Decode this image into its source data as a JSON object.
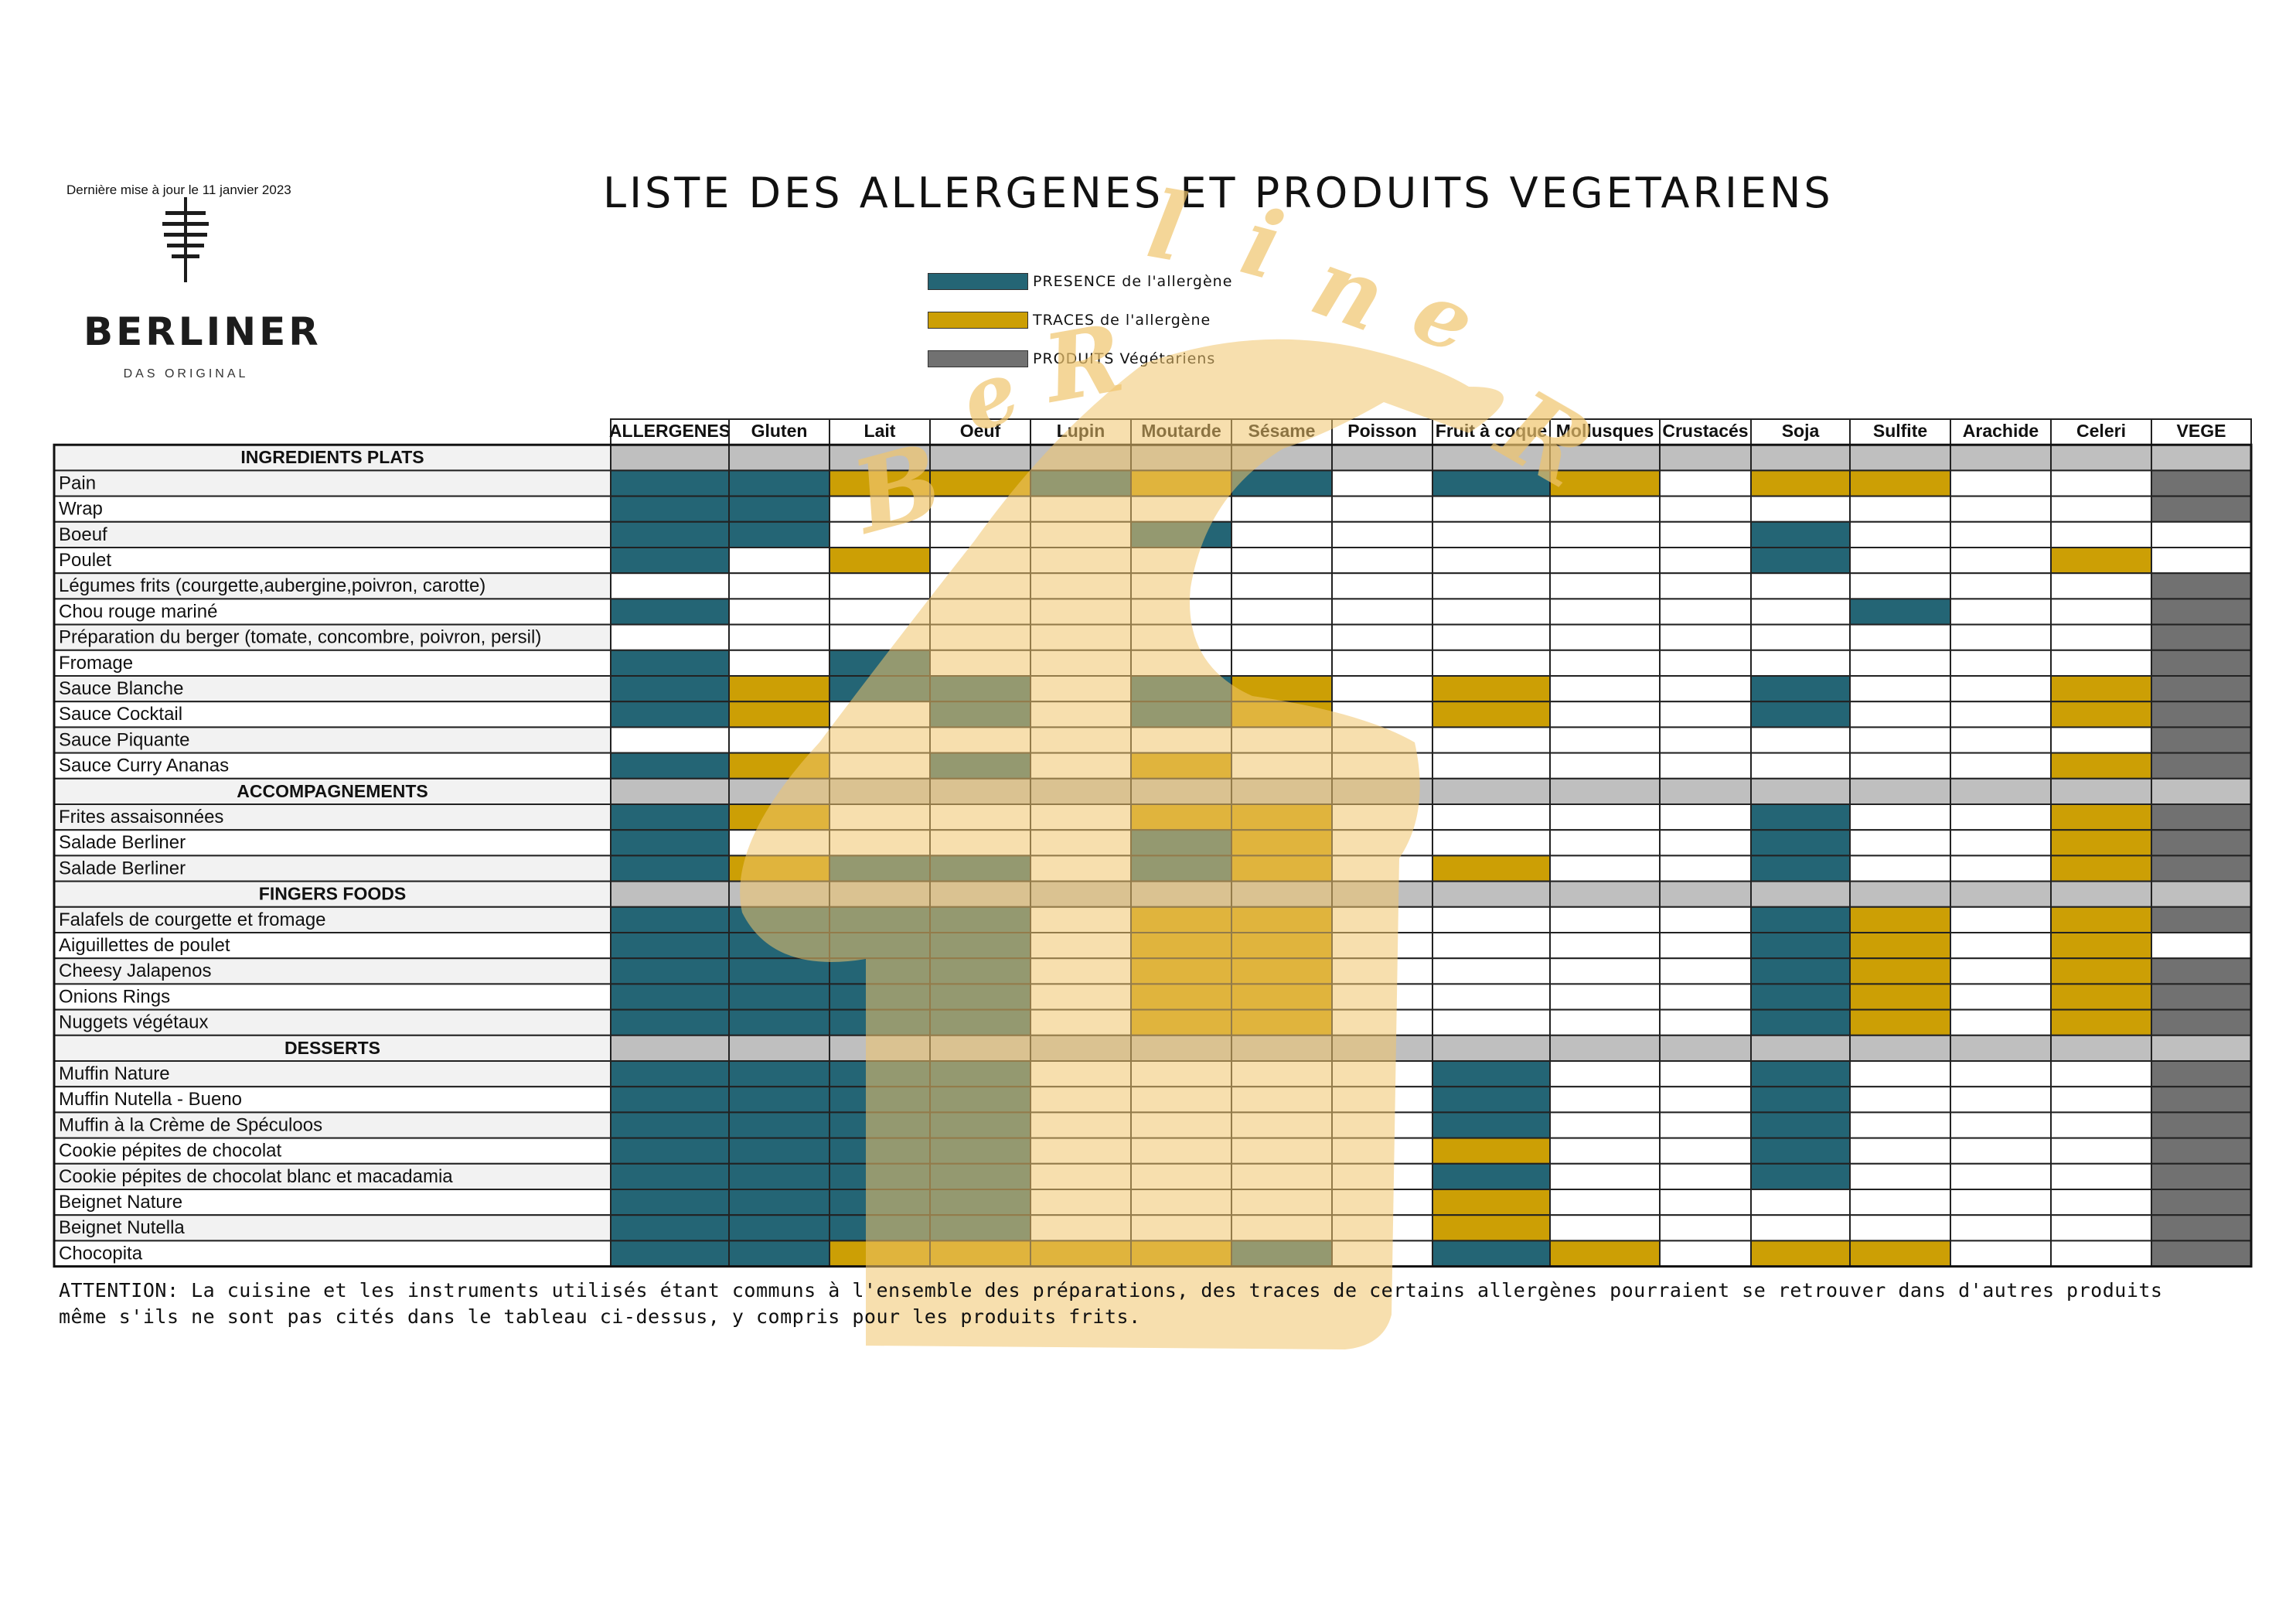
{
  "header": {
    "last_update": "Dernière mise à jour le 11 janvier 2023",
    "brand": "BERLINER",
    "tagline": "DAS ORIGINAL",
    "title": "LISTE DES ALLERGENES ET PRODUITS VEGETARIENS",
    "logo_icon": "kebab-spit-icon"
  },
  "legend": [
    {
      "label": "PRESENCE de l'allergène",
      "color": "#246575"
    },
    {
      "label": "TRACES de l'allergène",
      "color": "#cc9f05"
    },
    {
      "label": "PRODUITS Végétariens",
      "color": "#717171"
    }
  ],
  "colors": {
    "presence": "#246575",
    "traces": "#cc9f05",
    "vege": "#717171",
    "section": "#bfbfbf",
    "row_alt": "#f2f2f2",
    "watermark": "#f0c46c"
  },
  "table": {
    "columns": [
      "ALLERGENES",
      "Gluten",
      "Lait",
      "Oeuf",
      "Lupin",
      "Moutarde",
      "Sésame",
      "Poisson",
      "Fruit à coque",
      "Mollusques",
      "Crustacés",
      "Soja",
      "Sulfite",
      "Arachide",
      "Celeri",
      "VEGE"
    ],
    "sections": [
      {
        "name": "INGREDIENTS PLATS",
        "rows": [
          {
            "label": "Pain",
            "cells": [
              "P",
              "P",
              "T",
              "T",
              "P",
              "T",
              "P",
              "",
              "P",
              "T",
              "",
              "T",
              "T",
              "",
              "",
              "V"
            ]
          },
          {
            "label": "Wrap",
            "cells": [
              "P",
              "P",
              "",
              "",
              "",
              "",
              "",
              "",
              "",
              "",
              "",
              "",
              "",
              "",
              "",
              "V"
            ]
          },
          {
            "label": "Boeuf",
            "cells": [
              "P",
              "P",
              "",
              "",
              "",
              "P",
              "",
              "",
              "",
              "",
              "",
              "P",
              "",
              "",
              "",
              ""
            ]
          },
          {
            "label": "Poulet",
            "cells": [
              "P",
              "",
              "T",
              "",
              "",
              "",
              "",
              "",
              "",
              "",
              "",
              "P",
              "",
              "",
              "T",
              ""
            ]
          },
          {
            "label": "Légumes frits (courgette,aubergine,poivron, carotte)",
            "cells": [
              "",
              "",
              "",
              "",
              "",
              "",
              "",
              "",
              "",
              "",
              "",
              "",
              "",
              "",
              "",
              "V"
            ]
          },
          {
            "label": "Chou rouge mariné",
            "cells": [
              "P",
              "",
              "",
              "",
              "",
              "",
              "",
              "",
              "",
              "",
              "",
              "",
              "P",
              "",
              "",
              "V"
            ]
          },
          {
            "label": "Préparation du berger (tomate, concombre, poivron, persil)",
            "cells": [
              "",
              "",
              "",
              "",
              "",
              "",
              "",
              "",
              "",
              "",
              "",
              "",
              "",
              "",
              "",
              "V"
            ]
          },
          {
            "label": "Fromage",
            "cells": [
              "P",
              "",
              "P",
              "",
              "",
              "",
              "",
              "",
              "",
              "",
              "",
              "",
              "",
              "",
              "",
              "V"
            ]
          },
          {
            "label": "Sauce Blanche",
            "cells": [
              "P",
              "T",
              "P",
              "P",
              "",
              "P",
              "T",
              "",
              "T",
              "",
              "",
              "P",
              "",
              "",
              "T",
              "V"
            ]
          },
          {
            "label": "Sauce Cocktail",
            "cells": [
              "P",
              "T",
              "",
              "P",
              "",
              "P",
              "T",
              "",
              "T",
              "",
              "",
              "P",
              "",
              "",
              "T",
              "V"
            ]
          },
          {
            "label": "Sauce Piquante",
            "cells": [
              "",
              "",
              "",
              "",
              "",
              "",
              "",
              "",
              "",
              "",
              "",
              "",
              "",
              "",
              "",
              "V"
            ]
          },
          {
            "label": "Sauce Curry Ananas",
            "cells": [
              "P",
              "T",
              "",
              "P",
              "",
              "T",
              "",
              "",
              "",
              "",
              "",
              "",
              "",
              "",
              "T",
              "V"
            ]
          }
        ]
      },
      {
        "name": "ACCOMPAGNEMENTS",
        "rows": [
          {
            "label": "Frites assaisonnées",
            "cells": [
              "P",
              "T",
              "",
              "",
              "",
              "T",
              "T",
              "",
              "",
              "",
              "",
              "P",
              "",
              "",
              "T",
              "V"
            ]
          },
          {
            "label": "Salade Berliner",
            "cells": [
              "P",
              "",
              "",
              "",
              "",
              "P",
              "T",
              "",
              "",
              "",
              "",
              "P",
              "",
              "",
              "T",
              "V"
            ]
          },
          {
            "label": "Salade Berliner",
            "cells": [
              "P",
              "T",
              "P",
              "P",
              "",
              "P",
              "T",
              "",
              "T",
              "",
              "",
              "P",
              "",
              "",
              "T",
              "V"
            ]
          }
        ]
      },
      {
        "name": "FINGERS FOODS",
        "rows": [
          {
            "label": "Falafels de courgette et fromage",
            "cells": [
              "P",
              "P",
              "P",
              "P",
              "",
              "T",
              "T",
              "",
              "",
              "",
              "",
              "P",
              "T",
              "",
              "T",
              "V"
            ]
          },
          {
            "label": "Aiguillettes de poulet",
            "cells": [
              "P",
              "P",
              "P",
              "P",
              "",
              "T",
              "T",
              "",
              "",
              "",
              "",
              "P",
              "T",
              "",
              "T",
              ""
            ]
          },
          {
            "label": "Cheesy Jalapenos",
            "cells": [
              "P",
              "P",
              "P",
              "P",
              "",
              "T",
              "T",
              "",
              "",
              "",
              "",
              "P",
              "T",
              "",
              "T",
              "V"
            ]
          },
          {
            "label": "Onions Rings",
            "cells": [
              "P",
              "P",
              "P",
              "P",
              "",
              "T",
              "T",
              "",
              "",
              "",
              "",
              "P",
              "T",
              "",
              "T",
              "V"
            ]
          },
          {
            "label": "Nuggets végétaux",
            "cells": [
              "P",
              "P",
              "P",
              "P",
              "",
              "T",
              "T",
              "",
              "",
              "",
              "",
              "P",
              "T",
              "",
              "T",
              "V"
            ]
          }
        ]
      },
      {
        "name": "DESSERTS",
        "rows": [
          {
            "label": "Muffin Nature",
            "cells": [
              "P",
              "P",
              "P",
              "P",
              "",
              "",
              "",
              "",
              "P",
              "",
              "",
              "P",
              "",
              "",
              "",
              "V"
            ]
          },
          {
            "label": "Muffin Nutella - Bueno",
            "cells": [
              "P",
              "P",
              "P",
              "P",
              "",
              "",
              "",
              "",
              "P",
              "",
              "",
              "P",
              "",
              "",
              "",
              "V"
            ]
          },
          {
            "label": "Muffin à la Crème de Spéculoos",
            "cells": [
              "P",
              "P",
              "P",
              "P",
              "",
              "",
              "",
              "",
              "P",
              "",
              "",
              "P",
              "",
              "",
              "",
              "V"
            ]
          },
          {
            "label": "Cookie pépites de chocolat",
            "cells": [
              "P",
              "P",
              "P",
              "P",
              "",
              "",
              "",
              "",
              "T",
              "",
              "",
              "P",
              "",
              "",
              "",
              "V"
            ]
          },
          {
            "label": "Cookie pépites de chocolat blanc et macadamia",
            "cells": [
              "P",
              "P",
              "P",
              "P",
              "",
              "",
              "",
              "",
              "P",
              "",
              "",
              "P",
              "",
              "",
              "",
              "V"
            ]
          },
          {
            "label": "Beignet Nature",
            "cells": [
              "P",
              "P",
              "P",
              "P",
              "",
              "",
              "",
              "",
              "T",
              "",
              "",
              "",
              "",
              "",
              "",
              "V"
            ]
          },
          {
            "label": "Beignet Nutella",
            "cells": [
              "P",
              "P",
              "P",
              "P",
              "",
              "",
              "",
              "",
              "T",
              "",
              "",
              "",
              "",
              "",
              "",
              "V"
            ]
          },
          {
            "label": "Chocopita",
            "cells": [
              "P",
              "P",
              "T",
              "T",
              "T",
              "T",
              "P",
              "",
              "P",
              "T",
              "",
              "T",
              "T",
              "",
              "",
              "V"
            ]
          }
        ]
      }
    ]
  },
  "watermark_text": "Berliner",
  "footnote": "ATTENTION: La cuisine et les instruments utilisés étant communs à l'ensemble des préparations, des traces de certains allergènes pourraient se retrouver dans d'autres produits même s'ils ne sont pas cités dans le tableau ci-dessus, y compris pour les produits frits."
}
